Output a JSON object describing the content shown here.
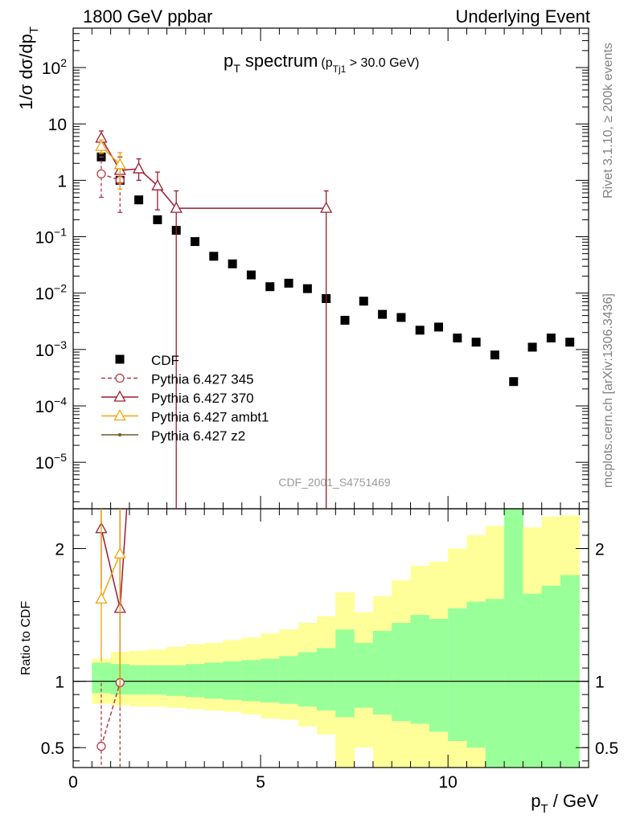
{
  "header": {
    "left": "1800 GeV ppbar",
    "right": "Underlying Event"
  },
  "side": {
    "rivet": "Rivet 3.1.10, ≥ 200k events",
    "source": "mcplots.cern.ch [arXiv:1306.3436]"
  },
  "chart_data": [
    {
      "type": "scatter",
      "title_main": "p",
      "title_main_sub": "T",
      "title_main_rest": " spectrum",
      "title_cut": "(p",
      "title_cut_sub": "Tj1",
      "title_cut_rest": " > 30.0 GeV)",
      "watermark": "CDF_2001_S4751469",
      "ylabel": "1/σ dσ/dp",
      "ylabel_sub": "T",
      "yscale": "log",
      "xlim": [
        0,
        13.75
      ],
      "ylim": [
        1.5e-06,
        500
      ],
      "yticks": [
        {
          "value": 1e-05,
          "base": "10",
          "exp": "−5"
        },
        {
          "value": 0.0001,
          "base": "10",
          "exp": "−4"
        },
        {
          "value": 0.001,
          "base": "10",
          "exp": "−3"
        },
        {
          "value": 0.01,
          "base": "10",
          "exp": "−2"
        },
        {
          "value": 0.1,
          "base": "10",
          "exp": "−1"
        },
        {
          "value": 1,
          "base": "1",
          "exp": ""
        },
        {
          "value": 10,
          "base": "10",
          "exp": ""
        },
        {
          "value": 100,
          "base": "10",
          "exp": "2"
        }
      ],
      "legend": [
        {
          "label": "CDF",
          "color": "#000000",
          "marker": "square",
          "dash": false
        },
        {
          "label": "Pythia 6.427 345",
          "color": "#b23a48",
          "marker": "circle",
          "dash": true
        },
        {
          "label": "Pythia 6.427 370",
          "color": "#9b1b30",
          "marker": "triangle",
          "dash": false
        },
        {
          "label": "Pythia 6.427 ambt1",
          "color": "#f0a30a",
          "marker": "triangle",
          "dash": false
        },
        {
          "label": "Pythia 6.427 z2",
          "color": "#6b5a1e",
          "marker": "dot",
          "dash": false
        }
      ],
      "series": [
        {
          "name": "CDF",
          "x": [
            0.75,
            1.25,
            1.75,
            2.25,
            2.75,
            3.25,
            3.75,
            4.25,
            4.75,
            5.25,
            5.75,
            6.25,
            6.75,
            7.25,
            7.75,
            8.25,
            8.75,
            9.25,
            9.75,
            10.25,
            10.75,
            11.25,
            11.75,
            12.25,
            12.75,
            13.25
          ],
          "y": [
            2.6,
            1.0,
            0.45,
            0.2,
            0.13,
            0.082,
            0.045,
            0.033,
            0.021,
            0.013,
            0.015,
            0.012,
            0.008,
            0.0033,
            0.0072,
            0.0042,
            0.0037,
            0.0022,
            0.0025,
            0.0016,
            0.00135,
            0.0008,
            0.00027,
            0.0011,
            0.0016,
            0.00135
          ]
        },
        {
          "name": "Pythia 6.427 345",
          "x": [
            0.75,
            1.25
          ],
          "y": [
            1.3,
            1.0
          ],
          "err_low": [
            0.5,
            0.27
          ],
          "err_high": [
            2.6,
            1.9
          ]
        },
        {
          "name": "Pythia 6.427 370",
          "x": [
            0.75,
            1.25,
            1.75,
            2.25,
            2.75,
            6.75
          ],
          "y": [
            5.6,
            1.5,
            1.6,
            0.8,
            0.32,
            0.32
          ],
          "err_low": [
            4.3,
            0.9,
            1.0,
            0.3,
            1e-07,
            1e-07
          ],
          "err_high": [
            7.5,
            2.6,
            2.4,
            1.4,
            0.65,
            0.65
          ]
        },
        {
          "name": "Pythia 6.427 ambt1",
          "x": [
            0.75,
            1.25
          ],
          "y": [
            4.0,
            1.9
          ],
          "err_low": [
            3.0,
            0.7
          ],
          "err_high": [
            5.2,
            3.1
          ]
        }
      ]
    },
    {
      "type": "line",
      "ylabel": "Ratio to CDF",
      "xlabel": "p",
      "xlabel_sub": "T",
      "xlabel_rest": " / GeV",
      "xlim": [
        0,
        13.75
      ],
      "ylim": [
        0.35,
        2.3
      ],
      "yticks": [
        {
          "value": 0.5,
          "label": "0.5"
        },
        {
          "value": 1,
          "label": "1"
        },
        {
          "value": 2,
          "label": "2"
        }
      ],
      "xticks": [
        {
          "value": 0,
          "label": "0"
        },
        {
          "value": 5,
          "label": "5"
        },
        {
          "value": 10,
          "label": "10"
        }
      ],
      "bands": {
        "edges": [
          0.5,
          1.0,
          1.5,
          2.0,
          2.5,
          3.0,
          3.5,
          4.0,
          4.5,
          5.0,
          5.5,
          6.0,
          6.5,
          7.0,
          7.5,
          8.0,
          8.5,
          9.0,
          9.5,
          10.0,
          10.5,
          11.0,
          11.5,
          12.0,
          12.5,
          13.0,
          13.5
        ],
        "yellow_low": [
          0.83,
          0.82,
          0.81,
          0.81,
          0.8,
          0.79,
          0.78,
          0.77,
          0.75,
          0.72,
          0.71,
          0.66,
          0.6,
          0.2,
          0.5,
          0.2,
          0.2,
          0.2,
          0.2,
          0.2,
          0.2,
          0.2,
          0.2,
          0.2,
          0.2,
          0.2
        ],
        "green_low": [
          0.91,
          0.9,
          0.9,
          0.9,
          0.89,
          0.88,
          0.87,
          0.86,
          0.85,
          0.84,
          0.83,
          0.81,
          0.78,
          0.73,
          0.8,
          0.75,
          0.7,
          0.68,
          0.62,
          0.55,
          0.5,
          0.2,
          0.2,
          0.32,
          0.2,
          0.2
        ],
        "green_high": [
          1.14,
          1.13,
          1.12,
          1.12,
          1.12,
          1.13,
          1.14,
          1.15,
          1.16,
          1.17,
          1.19,
          1.22,
          1.25,
          1.39,
          1.29,
          1.38,
          1.44,
          1.5,
          1.47,
          1.55,
          1.6,
          1.62,
          2.5,
          1.66,
          1.72,
          1.8
        ],
        "yellow_high": [
          1.17,
          1.22,
          1.23,
          1.24,
          1.26,
          1.28,
          1.29,
          1.31,
          1.33,
          1.36,
          1.39,
          1.44,
          1.49,
          1.67,
          1.52,
          1.64,
          1.76,
          1.87,
          1.9,
          2.0,
          2.1,
          2.17,
          2.5,
          2.16,
          2.24,
          2.25
        ],
        "green_color": "#99ff99",
        "yellow_color": "#ffff99"
      },
      "series": [
        {
          "name": "Pythia 6.427 345",
          "x": [
            0.75,
            1.25
          ],
          "y": [
            0.51,
            0.99
          ],
          "err_low": [
            0.2,
            0.27
          ],
          "err_high": [
            1.0,
            1.9
          ]
        },
        {
          "name": "Pythia 6.427 370",
          "x": [
            0.75,
            1.25,
            1.5
          ],
          "y": [
            2.15,
            1.55,
            2.6
          ],
          "err_low": [
            1.7,
            0.9,
            2.6
          ],
          "err_high": [
            2.6,
            2.4,
            2.6
          ]
        },
        {
          "name": "Pythia 6.427 ambt1",
          "x": [
            0.75,
            1.25
          ],
          "y": [
            1.62,
            1.96
          ],
          "err_low": [
            1.15,
            0.8
          ],
          "err_high": [
            2.6,
            2.6
          ]
        }
      ]
    }
  ]
}
